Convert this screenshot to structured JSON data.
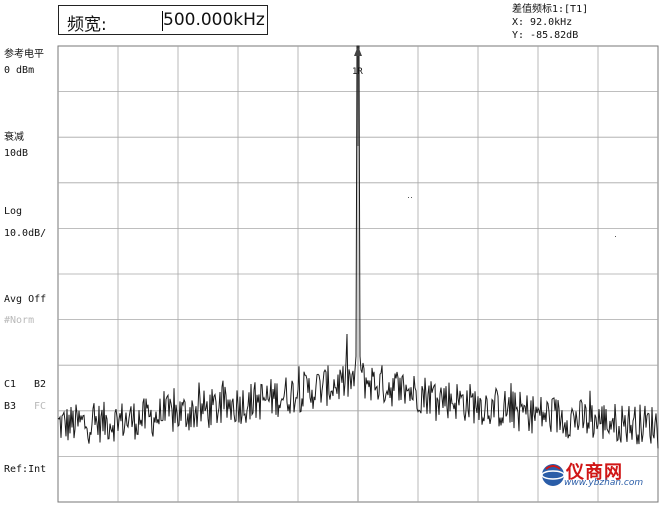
{
  "span_box": {
    "label": "频宽:",
    "value": "500.000kHz"
  },
  "marker_readout": {
    "title": "差值频标1:[T1]",
    "x": "X: 92.0kHz",
    "y": "Y: -85.82dB"
  },
  "left_panel": {
    "ref_level_label": "参考电平",
    "ref_level_value": "0  dBm",
    "atten_label": "衰减",
    "atten_value": "10dB",
    "scale_label": "Log",
    "scale_value": "10.0dB/",
    "avg_label": "Avg Off",
    "avg_mode": "#Norm",
    "c1": "C1",
    "b2": "B2",
    "b3": "B3",
    "fc": "FC",
    "ref": "Ref:Int"
  },
  "plot": {
    "marker_label": "1R",
    "trace_color": "#1a1a1a",
    "grid_color": "#a8a8a8",
    "peak_level_db": 0,
    "noise_floor_db": -83,
    "center_skirt_db": -73,
    "divisions_x": 10,
    "divisions_y": 10
  },
  "watermark": {
    "text": "仪商网",
    "url": "www.ybzhan.com",
    "color": "#d01616"
  }
}
